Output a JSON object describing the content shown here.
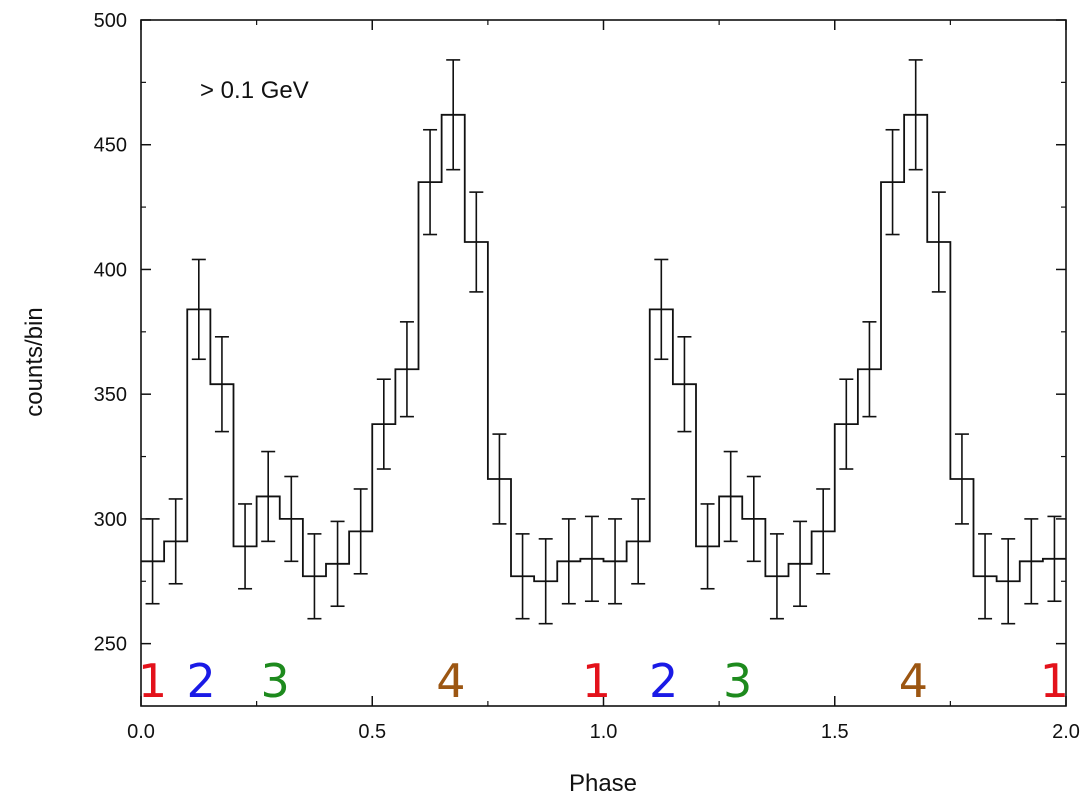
{
  "chart_data": {
    "type": "line",
    "xlabel": "Phase",
    "ylabel": "counts/bin",
    "annotation": "> 0.1 GeV",
    "xlim": [
      0.0,
      2.0
    ],
    "ylim": [
      225,
      500
    ],
    "xticks": [
      "0.0",
      "0.5",
      "1.0",
      "1.5",
      "2.0"
    ],
    "yticks": [
      "250",
      "300",
      "350",
      "400",
      "450",
      "500"
    ],
    "grid": false,
    "series": [
      {
        "phase": [
          0.025,
          0.075,
          0.125,
          0.175,
          0.225,
          0.275,
          0.325,
          0.375,
          0.425,
          0.475,
          0.525,
          0.575,
          0.625,
          0.675,
          0.725,
          0.775,
          0.825,
          0.875,
          0.925,
          0.975,
          1.025,
          1.075,
          1.125,
          1.175,
          1.225,
          1.275,
          1.325,
          1.375,
          1.425,
          1.475,
          1.525,
          1.575,
          1.625,
          1.675,
          1.725,
          1.775,
          1.825,
          1.875,
          1.925,
          1.975
        ],
        "counts": [
          283,
          291,
          384,
          354,
          289,
          309,
          300,
          277,
          282,
          295,
          338,
          360,
          435,
          462,
          411,
          316,
          277,
          275,
          283,
          284,
          283,
          291,
          384,
          354,
          289,
          309,
          300,
          277,
          282,
          295,
          338,
          360,
          435,
          462,
          411,
          316,
          277,
          275,
          283,
          284
        ],
        "errors": [
          17,
          17,
          20,
          19,
          17,
          18,
          17,
          17,
          17,
          17,
          18,
          19,
          21,
          22,
          20,
          18,
          17,
          17,
          17,
          17,
          17,
          17,
          20,
          19,
          17,
          18,
          17,
          17,
          17,
          17,
          18,
          19,
          21,
          22,
          20,
          18,
          17,
          17,
          17,
          17
        ]
      }
    ],
    "region_labels": [
      {
        "text": "1",
        "phase": 0.025,
        "color": "#e3121b"
      },
      {
        "text": "2",
        "phase": 0.13,
        "color": "#1a1ae6"
      },
      {
        "text": "3",
        "phase": 0.29,
        "color": "#1d8a1d"
      },
      {
        "text": "4",
        "phase": 0.67,
        "color": "#9c5612"
      },
      {
        "text": "1",
        "phase": 0.985,
        "color": "#e3121b"
      },
      {
        "text": "2",
        "phase": 1.13,
        "color": "#1a1ae6"
      },
      {
        "text": "3",
        "phase": 1.29,
        "color": "#1d8a1d"
      },
      {
        "text": "4",
        "phase": 1.67,
        "color": "#9c5612"
      },
      {
        "text": "1",
        "phase": 1.975,
        "color": "#e3121b"
      }
    ]
  }
}
